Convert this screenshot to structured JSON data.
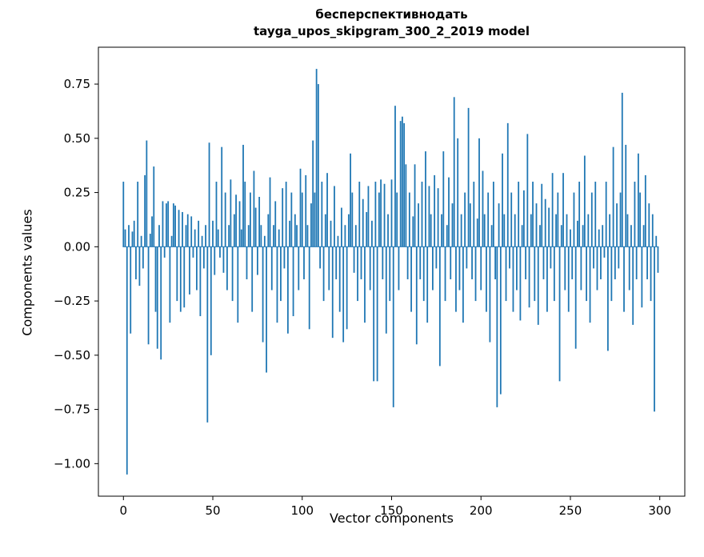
{
  "figure": {
    "background": "#ffffff"
  },
  "chart_data": {
    "type": "bar",
    "title_line1": "бесперспективнодать",
    "title_line2": "tayga_upos_skipgram_300_2_2019 model",
    "xlabel": "Vector components",
    "ylabel": "Components values",
    "bar_color": "#1f77b4",
    "axis_color": "#000000",
    "xlim": [
      -14,
      314
    ],
    "ylim": [
      -1.15,
      0.92
    ],
    "xticks": [
      0,
      50,
      100,
      150,
      200,
      250,
      300
    ],
    "xtick_labels": [
      "0",
      "50",
      "100",
      "150",
      "200",
      "250",
      "300"
    ],
    "yticks": [
      -1.0,
      -0.75,
      -0.5,
      -0.25,
      0.0,
      0.25,
      0.5,
      0.75
    ],
    "ytick_labels": [
      "−1.00",
      "−0.75",
      "−0.50",
      "−0.25",
      "0.00",
      "0.25",
      "0.50",
      "0.75"
    ],
    "legend": "none",
    "grid": false,
    "values": [
      0.3,
      0.08,
      -1.05,
      0.1,
      -0.4,
      0.07,
      0.12,
      -0.15,
      0.3,
      -0.18,
      0.05,
      -0.1,
      0.33,
      0.49,
      -0.45,
      0.06,
      0.14,
      0.37,
      -0.3,
      -0.47,
      0.1,
      -0.52,
      0.21,
      -0.05,
      0.2,
      0.21,
      -0.35,
      0.05,
      0.2,
      0.19,
      -0.25,
      0.17,
      -0.3,
      0.16,
      -0.28,
      0.1,
      0.15,
      -0.22,
      0.14,
      -0.05,
      0.08,
      -0.2,
      0.12,
      -0.32,
      0.05,
      -0.1,
      0.1,
      -0.81,
      0.48,
      -0.5,
      0.12,
      -0.13,
      0.3,
      0.08,
      -0.05,
      0.46,
      -0.12,
      0.25,
      -0.2,
      0.1,
      0.31,
      -0.25,
      0.15,
      0.24,
      -0.35,
      0.21,
      0.08,
      0.47,
      0.3,
      -0.15,
      0.1,
      0.25,
      -0.3,
      0.35,
      0.18,
      -0.13,
      0.23,
      0.1,
      -0.44,
      0.05,
      -0.58,
      0.15,
      0.32,
      -0.2,
      0.1,
      0.21,
      -0.35,
      0.08,
      -0.25,
      0.27,
      -0.1,
      0.3,
      -0.4,
      0.12,
      0.25,
      -0.32,
      0.15,
      0.1,
      -0.2,
      0.36,
      0.25,
      -0.15,
      0.33,
      0.1,
      -0.38,
      0.2,
      0.49,
      0.25,
      0.82,
      0.75,
      -0.1,
      0.3,
      -0.25,
      0.15,
      0.34,
      -0.2,
      0.12,
      -0.42,
      0.28,
      -0.15,
      0.05,
      -0.3,
      0.18,
      -0.44,
      0.1,
      -0.38,
      0.15,
      0.43,
      0.25,
      -0.12,
      0.1,
      -0.25,
      0.3,
      -0.15,
      0.22,
      -0.35,
      0.16,
      0.28,
      -0.2,
      0.12,
      -0.62,
      0.3,
      -0.62,
      0.25,
      0.31,
      -0.15,
      0.29,
      -0.4,
      0.15,
      -0.25,
      0.31,
      -0.74,
      0.65,
      0.25,
      -0.2,
      0.58,
      0.6,
      0.57,
      0.38,
      -0.15,
      0.25,
      -0.3,
      0.14,
      0.38,
      -0.45,
      0.2,
      -0.15,
      0.3,
      -0.25,
      0.44,
      -0.35,
      0.28,
      0.15,
      -0.2,
      0.33,
      -0.1,
      0.27,
      -0.55,
      0.15,
      0.44,
      -0.25,
      0.1,
      0.32,
      -0.15,
      0.2,
      0.69,
      -0.3,
      0.5,
      -0.2,
      0.15,
      -0.35,
      0.25,
      -0.1,
      0.64,
      0.2,
      -0.15,
      0.3,
      -0.25,
      0.13,
      0.5,
      -0.2,
      0.35,
      0.15,
      -0.3,
      0.25,
      -0.44,
      0.1,
      0.3,
      -0.15,
      -0.74,
      0.2,
      -0.68,
      0.43,
      0.15,
      -0.25,
      0.57,
      -0.1,
      0.25,
      -0.3,
      0.15,
      -0.2,
      0.3,
      -0.34,
      0.1,
      0.26,
      -0.15,
      0.52,
      -0.28,
      0.15,
      0.3,
      -0.25,
      0.2,
      -0.36,
      0.1,
      0.29,
      -0.15,
      0.22,
      -0.3,
      0.18,
      -0.1,
      0.34,
      -0.25,
      0.15,
      0.25,
      -0.62,
      0.1,
      0.34,
      -0.2,
      0.15,
      -0.3,
      0.08,
      -0.15,
      0.25,
      -0.47,
      0.12,
      0.3,
      -0.2,
      0.1,
      0.42,
      -0.25,
      0.15,
      -0.35,
      0.25,
      -0.1,
      0.3,
      -0.2,
      0.08,
      -0.15,
      0.1,
      -0.05,
      0.3,
      -0.48,
      0.15,
      -0.25,
      0.46,
      -0.15,
      0.2,
      -0.1,
      0.25,
      0.71,
      -0.3,
      0.47,
      0.15,
      -0.2,
      0.1,
      -0.36,
      0.3,
      -0.15,
      0.43,
      0.25,
      -0.28,
      0.1,
      0.33,
      -0.15,
      0.2,
      -0.25,
      0.15,
      -0.76,
      0.05,
      -0.12
    ]
  }
}
